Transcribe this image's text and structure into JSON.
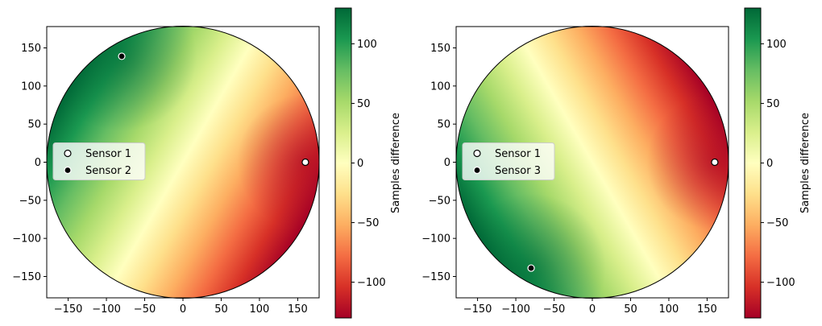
{
  "chart_data": [
    {
      "type": "heatmap",
      "title": "",
      "xlabel": "",
      "ylabel": "",
      "xlim": [
        -178,
        178
      ],
      "ylim": [
        -178,
        178
      ],
      "xticks": [
        -150,
        -100,
        -50,
        0,
        50,
        100,
        150
      ],
      "yticks": [
        -150,
        -100,
        -50,
        0,
        50,
        100,
        150
      ],
      "x_tick_labels": [
        "−150",
        "−100",
        "−50",
        "0",
        "50",
        "100",
        "150"
      ],
      "y_tick_labels": [
        "−150",
        "−100",
        "−50",
        "0",
        "50",
        "100",
        "150"
      ],
      "region": "circle centered at (0, 0) with radius 178",
      "colormap": "RdYlGn",
      "colorbar": {
        "label": "Samples difference",
        "range": [
          -130,
          130
        ],
        "ticks": [
          -100,
          -50,
          0,
          50,
          100
        ],
        "tick_labels": [
          "−100",
          "−50",
          "0",
          "50",
          "100"
        ]
      },
      "points": [
        {
          "label": "Sensor 1",
          "x": 160,
          "y": 0,
          "marker": "white"
        },
        {
          "label": "Sensor 2",
          "x": -80,
          "y": 139,
          "marker": "black"
        }
      ],
      "legend": {
        "position": "center-left",
        "entries": [
          "Sensor 1",
          "Sensor 2"
        ]
      }
    },
    {
      "type": "heatmap",
      "title": "",
      "xlabel": "",
      "ylabel": "",
      "xlim": [
        -178,
        178
      ],
      "ylim": [
        -178,
        178
      ],
      "xticks": [
        -150,
        -100,
        -50,
        0,
        50,
        100,
        150
      ],
      "yticks": [
        -150,
        -100,
        -50,
        0,
        50,
        100,
        150
      ],
      "x_tick_labels": [
        "−150",
        "−100",
        "−50",
        "0",
        "50",
        "100",
        "150"
      ],
      "y_tick_labels": [
        "−150",
        "−100",
        "−50",
        "0",
        "50",
        "100",
        "150"
      ],
      "region": "circle centered at (0, 0) with radius 178",
      "colormap": "RdYlGn",
      "colorbar": {
        "label": "Samples difference",
        "range": [
          -130,
          130
        ],
        "ticks": [
          -100,
          -50,
          0,
          50,
          100
        ],
        "tick_labels": [
          "−100",
          "−50",
          "0",
          "50",
          "100"
        ]
      },
      "points": [
        {
          "label": "Sensor 1",
          "x": 160,
          "y": 0,
          "marker": "white"
        },
        {
          "label": "Sensor 3",
          "x": -80,
          "y": -139,
          "marker": "black"
        }
      ],
      "legend": {
        "position": "center-left",
        "entries": [
          "Sensor 1",
          "Sensor 3"
        ]
      }
    }
  ]
}
